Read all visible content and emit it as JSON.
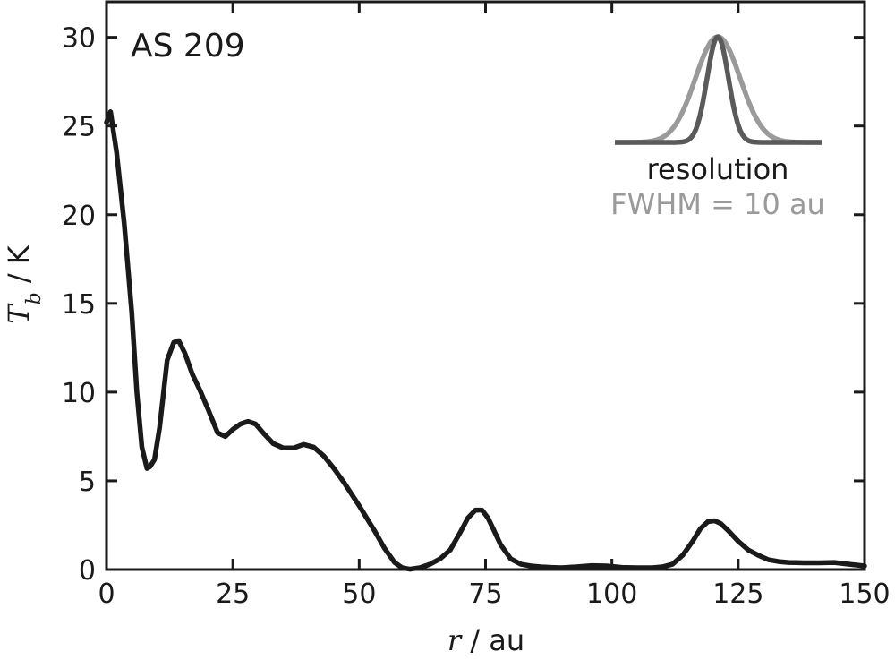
{
  "chart_data": {
    "type": "line",
    "title": "AS 209",
    "xlabel": {
      "var": "r",
      "unit": " / au"
    },
    "ylabel": {
      "var": "T",
      "sub": "b",
      "unit": " / K"
    },
    "xlim": [
      0,
      150
    ],
    "ylim": [
      0,
      32
    ],
    "xticks": [
      0,
      25,
      50,
      75,
      100,
      125,
      150
    ],
    "yticks": [
      0,
      5,
      10,
      15,
      20,
      25,
      30
    ],
    "grid": false,
    "line_color": "#1a1a1a",
    "series": [
      {
        "x": [
          0,
          0.8,
          2,
          3.5,
          5,
          6,
          7,
          8,
          8.6,
          9.5,
          10.5,
          12,
          13.3,
          14.3,
          15.5,
          17,
          18.5,
          20,
          22,
          23.5,
          25,
          26.5,
          28,
          29.5,
          31,
          33,
          35,
          37,
          39,
          41,
          43,
          45,
          47,
          50,
          53,
          55,
          57,
          58.5,
          60,
          62,
          64,
          66,
          68,
          70,
          71.5,
          73,
          74.3,
          75.5,
          76.5,
          78,
          80,
          82,
          84,
          86,
          88,
          90,
          93,
          96,
          99,
          102,
          105,
          108,
          110,
          112,
          114,
          116,
          117.5,
          119,
          120.3,
          121.5,
          123,
          125,
          127,
          129,
          131,
          133,
          135,
          138,
          141,
          144,
          147,
          150
        ],
        "y": [
          25.2,
          25.8,
          23.5,
          19.5,
          14.5,
          10,
          6.9,
          5.7,
          5.8,
          6.2,
          8,
          11.8,
          12.8,
          12.9,
          12.2,
          11,
          10.1,
          9.1,
          7.7,
          7.5,
          7.9,
          8.2,
          8.35,
          8.2,
          7.7,
          7.1,
          6.85,
          6.85,
          7.05,
          6.9,
          6.4,
          5.7,
          4.9,
          3.6,
          2.2,
          1.2,
          0.4,
          0.1,
          0.02,
          0.1,
          0.3,
          0.6,
          1.1,
          2.1,
          2.9,
          3.35,
          3.35,
          2.9,
          2.3,
          1.4,
          0.6,
          0.3,
          0.2,
          0.15,
          0.12,
          0.1,
          0.15,
          0.22,
          0.2,
          0.12,
          0.1,
          0.1,
          0.15,
          0.3,
          0.8,
          1.6,
          2.3,
          2.7,
          2.75,
          2.6,
          2.2,
          1.6,
          1.1,
          0.8,
          0.55,
          0.45,
          0.4,
          0.38,
          0.38,
          0.4,
          0.3,
          0.2
        ]
      }
    ],
    "inset": {
      "label": "resolution",
      "fwhm_label": "FWHM = 10 au",
      "beam_color": "#9a9a9a",
      "narrow_color": "#5a5a5a",
      "baseline_color": "#4a4a4a"
    }
  }
}
